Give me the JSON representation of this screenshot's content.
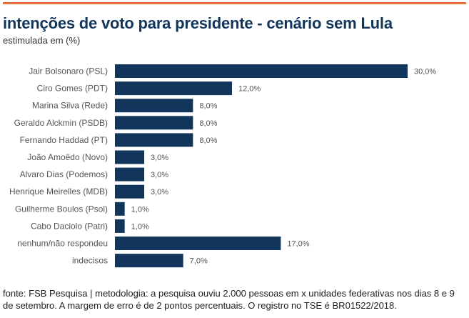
{
  "header": {
    "title": "intenções de voto para presidente - cenário sem Lula",
    "subtitle": "estimulada em (%)"
  },
  "colors": {
    "accent_bar": "#e8743b",
    "bar": "#12355b",
    "title": "#12355b"
  },
  "chart_data": {
    "type": "bar",
    "orientation": "horizontal",
    "title": "intenções de voto para presidente - cenário sem Lula",
    "subtitle": "estimulada em (%)",
    "categories": [
      "Jair Bolsonaro (PSL)",
      "Ciro Gomes (PDT)",
      "Marina Silva (Rede)",
      "Geraldo Alckmin (PSDB)",
      "Fernando Haddad (PT)",
      "João Amoêdo (Novo)",
      "Alvaro Dias (Podemos)",
      "Henrique Meirelles (MDB)",
      "Guilherme Boulos (Psol)",
      "Cabo Daciolo (Patri)",
      "nenhum/não respondeu",
      "indecisos"
    ],
    "values": [
      30,
      12,
      8,
      8,
      8,
      3,
      3,
      3,
      1,
      1,
      17,
      7
    ],
    "value_labels": [
      "30,0%",
      "12,0%",
      "8,0%",
      "8,0%",
      "8,0%",
      "3,0%",
      "3,0%",
      "3,0%",
      "1,0%",
      "1,0%",
      "17,0%",
      "7,0%"
    ],
    "xlim": [
      0,
      30
    ],
    "xlabel": "",
    "ylabel": "",
    "grid": false
  },
  "footer": {
    "source": "fonte: FSB Pesquisa | metodologia: a pesquisa ouviu 2.000 pessoas em x unidades federativas nos dias 8 e 9 de setembro. A margem de erro é de 2 pontos percentuais. O registro no TSE é BR01522/2018."
  }
}
